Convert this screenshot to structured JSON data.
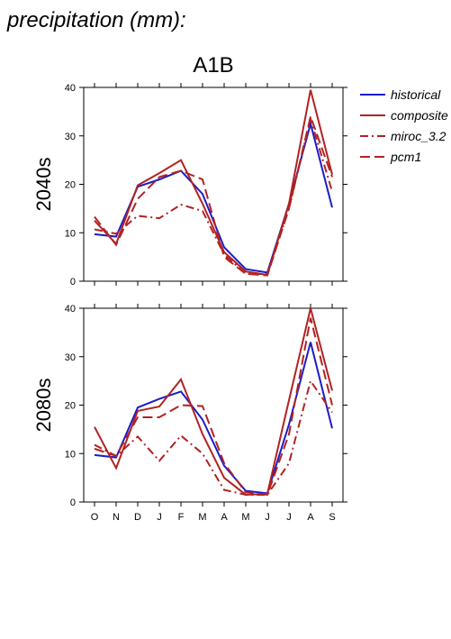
{
  "title": "precipitation (mm):",
  "subtitle": "A1B",
  "chart_data": [
    {
      "type": "line",
      "ylabel": "2040s",
      "ylim": [
        0,
        40
      ],
      "yticks": [
        0,
        10,
        20,
        30,
        40
      ],
      "legend": "right",
      "series": [
        {
          "name": "historical",
          "color": "#1c1cc8",
          "dash": "solid",
          "values": [
            9.7,
            9.2,
            19.5,
            21,
            22.8,
            18,
            7,
            2.5,
            1.8,
            16,
            32.5,
            15.2
          ]
        },
        {
          "name": "composite",
          "color": "#b22222",
          "dash": "solid",
          "values": [
            12.5,
            7.7,
            19.8,
            22.3,
            25,
            16,
            6,
            2,
            1.3,
            16,
            39.5,
            22
          ]
        },
        {
          "name": "miroc_3.2",
          "color": "#b22222",
          "dash": "dashdot",
          "values": [
            10.7,
            9.8,
            13.5,
            13,
            15.8,
            14.5,
            5.5,
            1.5,
            1.5,
            15,
            33.5,
            18.5
          ]
        },
        {
          "name": "pcm1",
          "color": "#b22222",
          "dash": "dash",
          "values": [
            13.3,
            7.5,
            17,
            21.5,
            22.8,
            21,
            5,
            1.5,
            1.2,
            15,
            34,
            21.5
          ]
        }
      ]
    },
    {
      "type": "line",
      "ylabel": "2080s",
      "ylim": [
        0,
        40
      ],
      "yticks": [
        0,
        10,
        20,
        30,
        40
      ],
      "categories": [
        "O",
        "N",
        "D",
        "J",
        "F",
        "M",
        "A",
        "M",
        "J",
        "J",
        "A",
        "S"
      ],
      "series": [
        {
          "color": "#1c1cc8",
          "dash": "solid",
          "values": [
            9.7,
            9.2,
            19.5,
            21.3,
            22.8,
            17,
            7.5,
            2.3,
            1.8,
            16,
            33,
            15.2
          ]
        },
        {
          "color": "#b22222",
          "dash": "solid",
          "values": [
            15.5,
            7,
            18.8,
            19.7,
            25.3,
            14,
            5,
            1.5,
            1.7,
            21,
            40,
            23
          ]
        },
        {
          "color": "#b22222",
          "dash": "dashdot",
          "values": [
            11.8,
            9.5,
            13.5,
            8.5,
            13.7,
            10,
            2.5,
            1.5,
            1.5,
            8,
            25,
            18.5
          ]
        },
        {
          "color": "#b22222",
          "dash": "dash",
          "values": [
            11,
            9.5,
            17.5,
            17.5,
            20,
            19.8,
            8,
            2,
            1.5,
            14,
            38,
            20
          ]
        }
      ]
    }
  ]
}
